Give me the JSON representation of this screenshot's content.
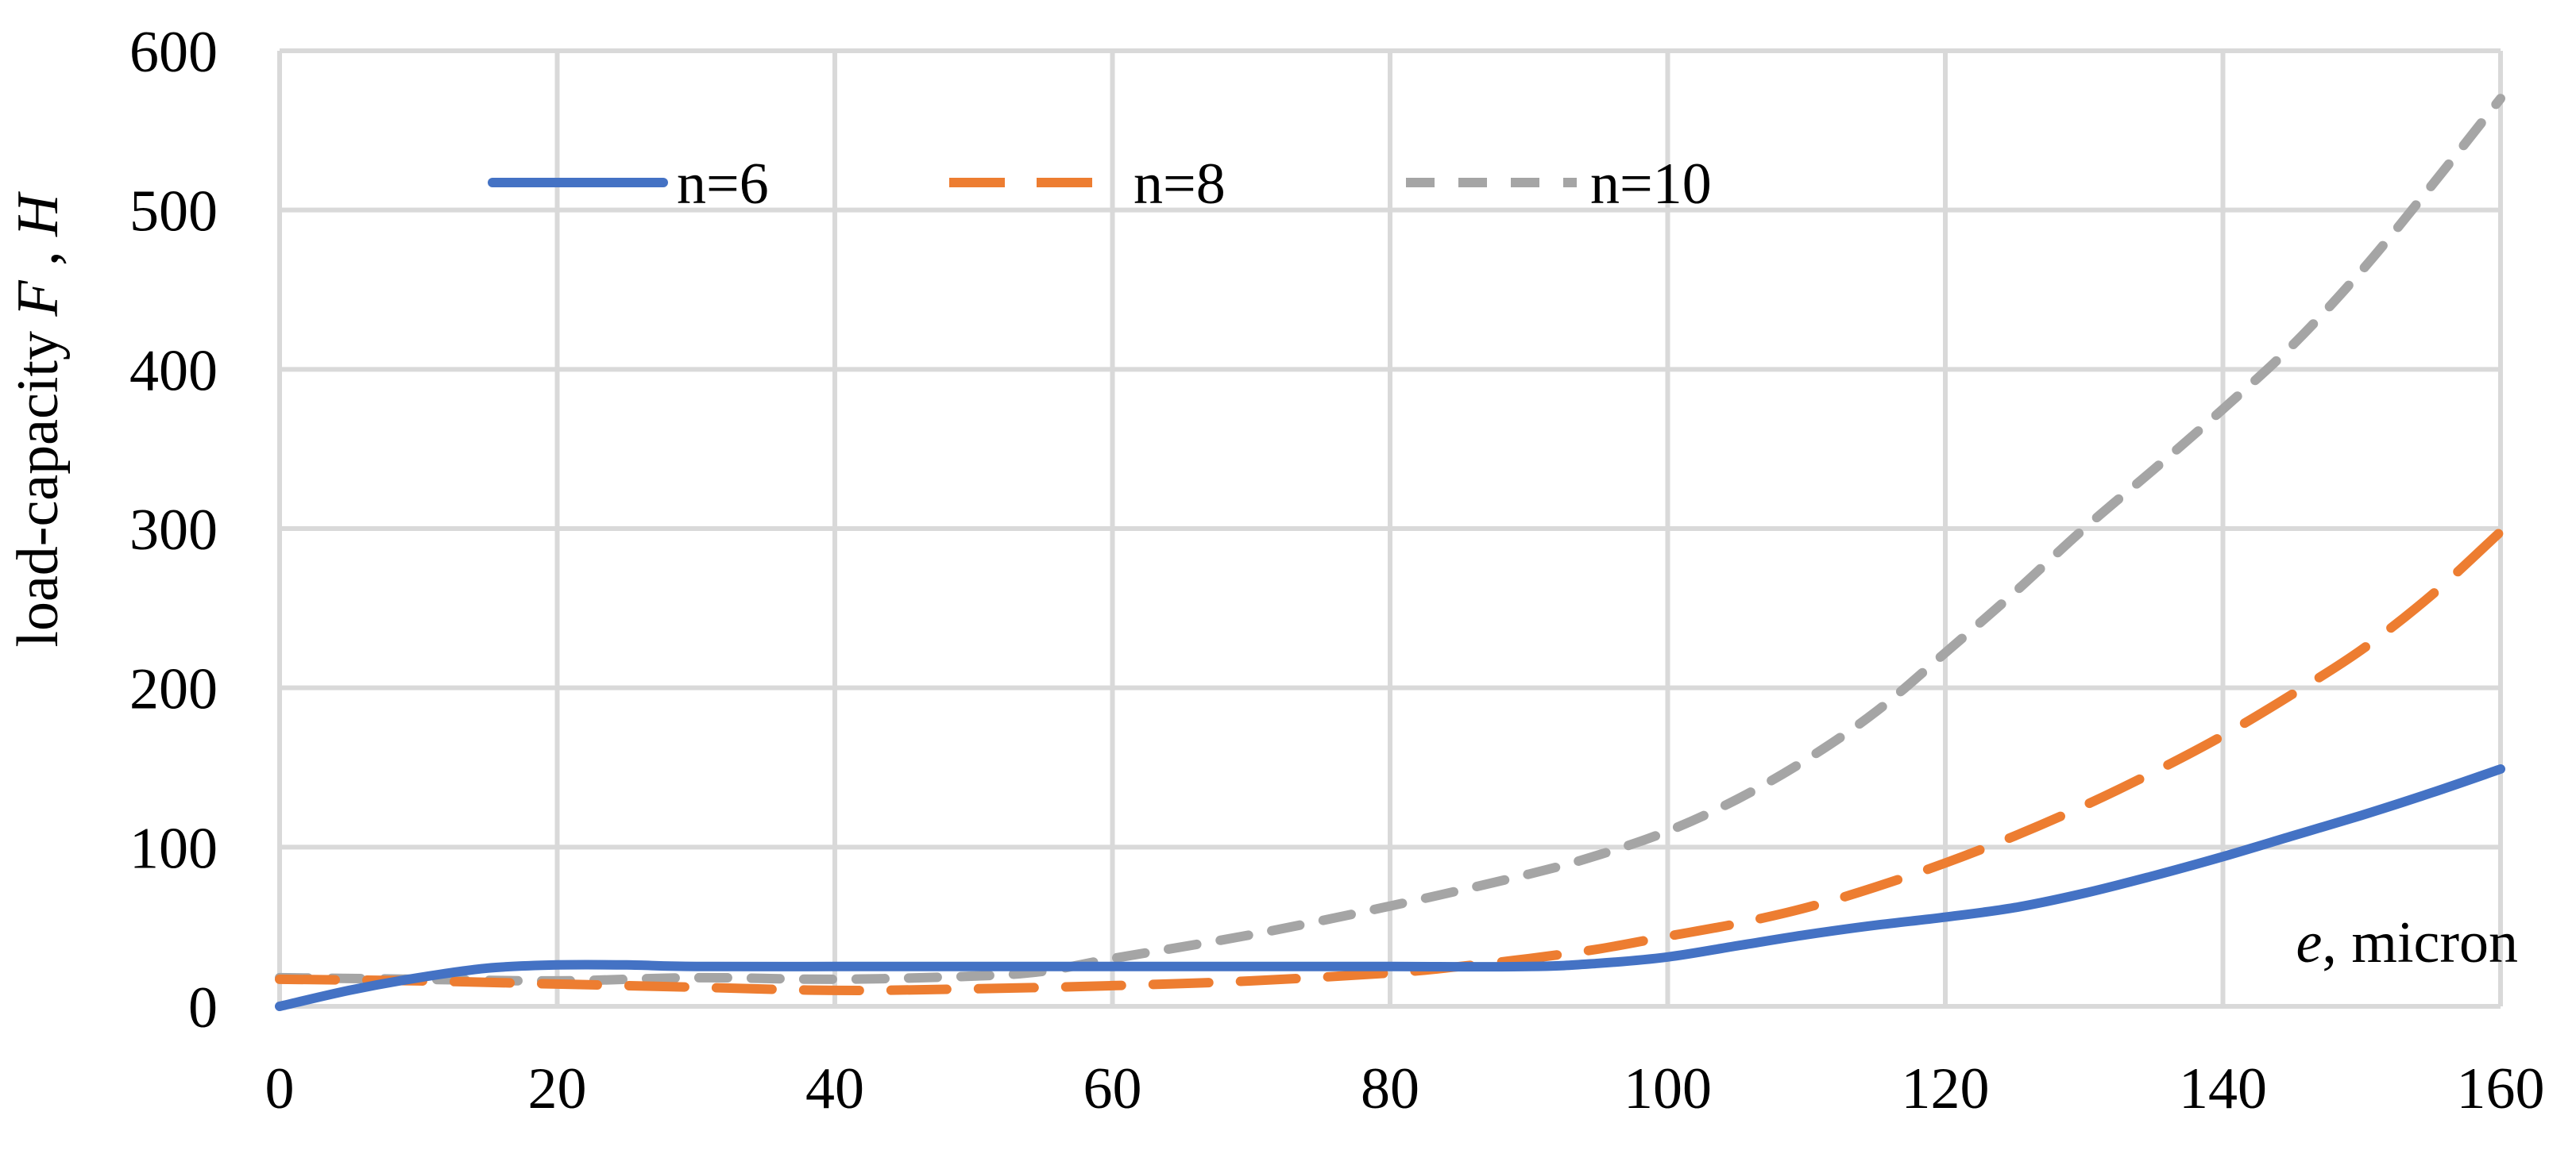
{
  "chart_data": {
    "type": "line",
    "title": "",
    "xlabel": "e, micron",
    "xlabel_var": "e",
    "xlabel_unit": ", micron",
    "ylabel": "load-capacity F , H",
    "ylabel_prefix": "load-capacity ",
    "ylabel_var1": "F",
    "ylabel_sep": " , ",
    "ylabel_var2": "H",
    "xlim": [
      0,
      160
    ],
    "ylim": [
      0,
      600
    ],
    "x_ticks": [
      0,
      20,
      40,
      60,
      80,
      100,
      120,
      140,
      160
    ],
    "y_ticks": [
      0,
      100,
      200,
      300,
      400,
      500,
      600
    ],
    "grid": true,
    "legend_position": "top",
    "series": [
      {
        "name": "n=6",
        "color": "#4472c4",
        "dash": "solid",
        "x": [
          0,
          5,
          10,
          15,
          20,
          25,
          30,
          40,
          50,
          60,
          70,
          80,
          90,
          95,
          100,
          105,
          110,
          115,
          120,
          125,
          130,
          135,
          140,
          145,
          150,
          155,
          160
        ],
        "y": [
          0,
          10,
          18,
          24,
          26,
          26,
          25,
          25,
          25,
          25,
          25,
          25,
          25,
          27,
          31,
          38,
          45,
          51,
          56,
          62,
          71,
          82,
          94,
          107,
          120,
          134,
          149
        ]
      },
      {
        "name": "n=8",
        "color": "#ed7d31",
        "dash": "long-dash",
        "x": [
          0,
          10,
          20,
          30,
          40,
          50,
          60,
          70,
          80,
          85,
          90,
          95,
          100,
          105,
          110,
          115,
          120,
          125,
          130,
          135,
          140,
          145,
          150,
          155,
          160
        ],
        "y": [
          17,
          16,
          14,
          12,
          10,
          11,
          13,
          16,
          21,
          25,
          30,
          36,
          44,
          52,
          62,
          75,
          90,
          107,
          126,
          147,
          170,
          196,
          224,
          258,
          298
        ]
      },
      {
        "name": "n=10",
        "color": "#a5a5a5",
        "dash": "short-dash",
        "x": [
          0,
          10,
          20,
          30,
          40,
          50,
          55,
          60,
          70,
          80,
          90,
          95,
          100,
          105,
          110,
          115,
          120,
          125,
          130,
          135,
          140,
          145,
          150,
          155,
          160
        ],
        "y": [
          18,
          17,
          16,
          18,
          17,
          19,
          22,
          30,
          45,
          63,
          83,
          95,
          110,
          130,
          155,
          185,
          222,
          260,
          300,
          337,
          375,
          415,
          462,
          515,
          570
        ]
      }
    ]
  }
}
